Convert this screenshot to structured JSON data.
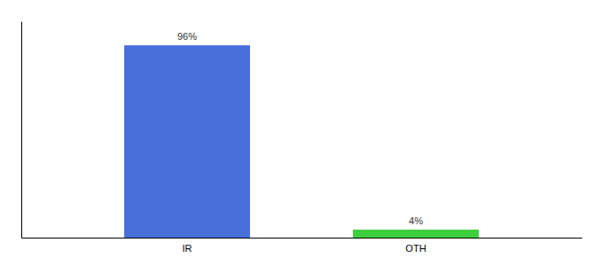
{
  "chart_data": {
    "type": "bar",
    "categories": [
      "IR",
      "OTH"
    ],
    "values": [
      96,
      4
    ],
    "value_labels": [
      "96%",
      "4%"
    ],
    "colors": [
      "#4a6fdb",
      "#3ecf3e"
    ],
    "ylim": [
      0,
      108
    ],
    "data_labels": true,
    "tick_labels": "x",
    "grid": false
  }
}
